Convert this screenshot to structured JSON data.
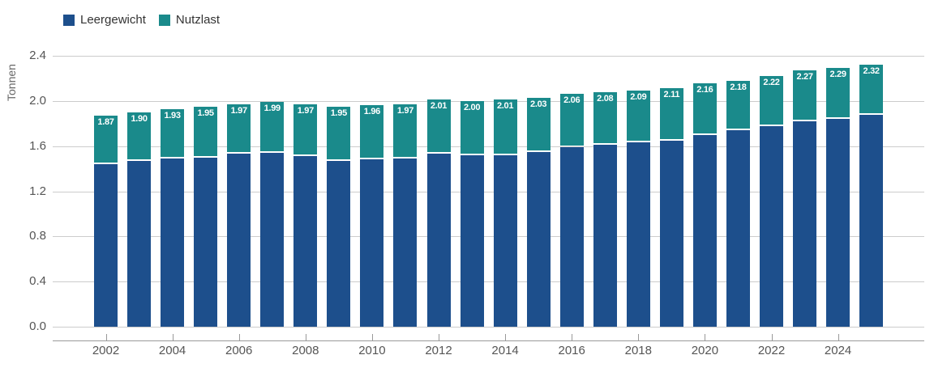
{
  "legend": {
    "items": [
      {
        "label": "Leergewicht",
        "color": "#1d4f8c"
      },
      {
        "label": "Nutzlast",
        "color": "#1a8a8b"
      }
    ]
  },
  "chart_data": {
    "type": "bar",
    "stacked": true,
    "ylabel": "Tonnen",
    "xlabel": "",
    "ylim": [
      0,
      2.4
    ],
    "ytick_labels": [
      "0.0",
      "0.4",
      "0.8",
      "1.2",
      "1.6",
      "2.0",
      "2.4"
    ],
    "xtick_labels": [
      "2002",
      "2004",
      "2006",
      "2008",
      "2010",
      "2012",
      "2014",
      "2016",
      "2018",
      "2020",
      "2022",
      "2024"
    ],
    "grid": true,
    "legend_position": "top-left",
    "categories": [
      2002,
      2003,
      2004,
      2005,
      2006,
      2007,
      2008,
      2009,
      2010,
      2011,
      2012,
      2013,
      2014,
      2015,
      2016,
      2017,
      2018,
      2019,
      2020,
      2021,
      2022,
      2023,
      2024,
      2025
    ],
    "series": [
      {
        "name": "Leergewicht",
        "color": "#1d4f8c",
        "values": [
          1.44,
          1.47,
          1.49,
          1.5,
          1.53,
          1.54,
          1.51,
          1.47,
          1.48,
          1.49,
          1.53,
          1.52,
          1.52,
          1.55,
          1.59,
          1.61,
          1.63,
          1.65,
          1.7,
          1.74,
          1.78,
          1.82,
          1.84,
          1.88
        ]
      },
      {
        "name": "Nutzlast",
        "color": "#1a8a8b",
        "values": [
          0.43,
          0.43,
          0.44,
          0.45,
          0.44,
          0.45,
          0.46,
          0.48,
          0.48,
          0.48,
          0.48,
          0.48,
          0.49,
          0.48,
          0.47,
          0.47,
          0.46,
          0.46,
          0.46,
          0.44,
          0.44,
          0.45,
          0.45,
          0.44
        ]
      }
    ],
    "totals": [
      1.87,
      1.9,
      1.93,
      1.95,
      1.97,
      1.99,
      1.97,
      1.95,
      1.96,
      1.97,
      2.01,
      2.0,
      2.01,
      2.03,
      2.06,
      2.08,
      2.09,
      2.11,
      2.16,
      2.18,
      2.22,
      2.27,
      2.29,
      2.32
    ],
    "total_labels": [
      "1.87",
      "1.90",
      "1.93",
      "1.95",
      "1.97",
      "1.99",
      "1.97",
      "1.95",
      "1.96",
      "1.97",
      "2.01",
      "2.00",
      "2.01",
      "2.03",
      "2.06",
      "2.08",
      "2.09",
      "2.11",
      "2.16",
      "2.18",
      "2.22",
      "2.27",
      "2.29",
      "2.32"
    ]
  }
}
